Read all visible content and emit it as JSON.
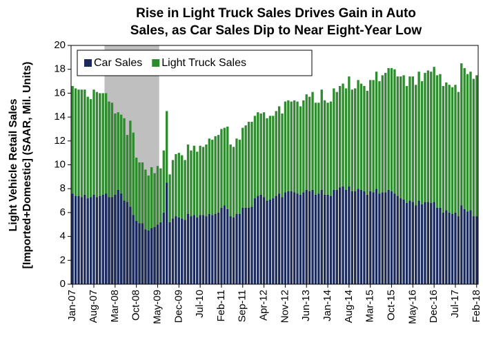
{
  "chart_data": {
    "type": "stacked_bar",
    "title": [
      "Rise in Light Truck Sales Drives Gain in Auto",
      "Sales, as Car Sales Dip to Near Eight-Year Low"
    ],
    "ylabel": [
      "Light Vehicle Retail Sales",
      "[Imported+Domestic] (SAAR, Mil. Units)"
    ],
    "categories": [
      "Jan-07",
      null,
      null,
      null,
      null,
      null,
      null,
      "Aug-07",
      null,
      null,
      null,
      null,
      null,
      null,
      "Mar-08",
      null,
      null,
      null,
      null,
      null,
      null,
      "Oct-08",
      null,
      null,
      null,
      null,
      null,
      null,
      "May-09",
      null,
      null,
      null,
      null,
      null,
      null,
      "Dec-09",
      null,
      null,
      null,
      null,
      null,
      null,
      "Jul-10",
      null,
      null,
      null,
      null,
      null,
      null,
      "Feb-11",
      null,
      null,
      null,
      null,
      null,
      null,
      "Sep-11",
      null,
      null,
      null,
      null,
      null,
      null,
      "Apr-12",
      null,
      null,
      null,
      null,
      null,
      null,
      "Nov-12",
      null,
      null,
      null,
      null,
      null,
      null,
      "Jun-13",
      null,
      null,
      null,
      null,
      null,
      null,
      "Jan-14",
      null,
      null,
      null,
      null,
      null,
      null,
      "Aug-14",
      null,
      null,
      null,
      null,
      null,
      null,
      "Mar-15",
      null,
      null,
      null,
      null,
      null,
      null,
      "Oct-15",
      null,
      null,
      null,
      null,
      null,
      null,
      "May-16",
      null,
      null,
      null,
      null,
      null,
      null,
      "Dec-16",
      null,
      null,
      null,
      null,
      null,
      null,
      "Jul-17",
      null,
      null,
      null,
      null,
      null,
      null,
      "Feb-18"
    ],
    "series": [
      {
        "name": "Car Sales",
        "color": "#1b2a5c",
        "values": [
          7.6,
          7.4,
          7.4,
          7.3,
          7.5,
          7.2,
          7.3,
          7.5,
          7.3,
          7.4,
          7.5,
          7.6,
          7.3,
          7.3,
          7.5,
          7.9,
          7.6,
          7.0,
          6.9,
          6.5,
          5.8,
          5.3,
          5.1,
          5.1,
          4.6,
          4.5,
          4.7,
          4.8,
          5.0,
          5.2,
          6.0,
          8.5,
          5.2,
          5.5,
          5.7,
          5.6,
          5.5,
          5.4,
          5.9,
          5.7,
          5.8,
          5.6,
          5.8,
          5.8,
          5.7,
          5.9,
          5.8,
          5.9,
          6.0,
          6.4,
          6.6,
          6.3,
          5.7,
          5.6,
          5.9,
          5.9,
          6.4,
          6.4,
          6.4,
          6.5,
          7.2,
          7.4,
          7.5,
          7.3,
          7.0,
          7.1,
          7.2,
          7.4,
          7.6,
          7.3,
          7.7,
          7.8,
          7.8,
          7.7,
          7.6,
          7.5,
          7.7,
          7.9,
          7.8,
          7.9,
          7.5,
          7.6,
          7.9,
          7.5,
          7.5,
          7.4,
          7.9,
          7.9,
          8.1,
          8.2,
          7.9,
          8.2,
          7.8,
          7.8,
          8.0,
          7.9,
          7.8,
          7.5,
          7.8,
          7.7,
          8.0,
          7.6,
          7.7,
          7.7,
          7.9,
          7.8,
          7.6,
          7.4,
          7.2,
          7.1,
          6.8,
          7.0,
          6.9,
          6.6,
          7.0,
          6.7,
          6.9,
          6.9,
          6.8,
          6.9,
          6.4,
          6.4,
          6.0,
          6.2,
          6.0,
          5.9,
          6.0,
          5.7,
          6.6,
          6.3,
          6.1,
          6.2,
          5.7,
          5.7
        ]
      },
      {
        "name": "Light Truck Sales",
        "color": "#2e8b2e",
        "values": [
          9.0,
          9.0,
          8.9,
          9.0,
          8.8,
          8.5,
          8.2,
          8.8,
          8.8,
          8.6,
          8.5,
          8.4,
          8.0,
          7.9,
          6.8,
          6.5,
          6.6,
          6.9,
          5.6,
          7.2,
          6.9,
          5.3,
          5.1,
          5.1,
          5.0,
          4.6,
          5.1,
          4.5,
          4.9,
          4.5,
          5.2,
          6.0,
          4.0,
          4.9,
          5.2,
          5.4,
          5.3,
          5.0,
          5.8,
          5.5,
          5.8,
          5.5,
          5.8,
          5.7,
          6.0,
          6.3,
          6.3,
          6.5,
          6.5,
          6.6,
          6.5,
          6.9,
          6.0,
          5.9,
          6.3,
          6.2,
          6.7,
          6.9,
          7.2,
          7.1,
          6.9,
          7.0,
          6.8,
          7.1,
          6.9,
          7.0,
          6.9,
          7.1,
          7.3,
          7.0,
          7.6,
          7.6,
          7.5,
          7.7,
          7.7,
          7.4,
          7.7,
          8.0,
          7.9,
          8.2,
          7.7,
          7.6,
          8.4,
          7.9,
          7.7,
          7.9,
          8.5,
          8.2,
          8.5,
          8.6,
          8.5,
          9.2,
          8.5,
          8.6,
          9.1,
          8.9,
          8.8,
          8.7,
          9.3,
          9.4,
          9.8,
          9.4,
          9.8,
          10.0,
          10.2,
          10.3,
          10.4,
          10.0,
          10.2,
          10.4,
          9.8,
          10.4,
          10.5,
          10.1,
          10.8,
          10.3,
          10.8,
          11.0,
          11.0,
          11.3,
          11.1,
          11.2,
          10.6,
          10.7,
          10.7,
          10.6,
          10.7,
          10.4,
          11.9,
          11.8,
          11.5,
          11.6,
          11.5,
          11.8
        ]
      }
    ],
    "ylim": [
      0,
      20
    ],
    "yticks": [
      0,
      2,
      4,
      6,
      8,
      10,
      12,
      14,
      16,
      18,
      20
    ],
    "legend": "top-left"
  }
}
